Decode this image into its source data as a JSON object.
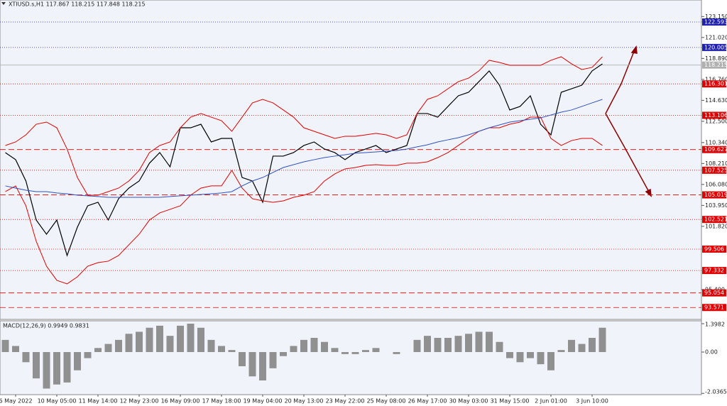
{
  "chart_data": {
    "type": "line",
    "title": "XTIUSD.s,H1  117.867 118.215 117.848 118.215",
    "categories": [
      null,
      "6 May 2022",
      null,
      null,
      null,
      "10 May 05:00",
      null,
      null,
      null,
      "11 May 14:00",
      null,
      null,
      null,
      "12 May 23:00",
      null,
      null,
      null,
      "16 May 09:00",
      null,
      null,
      null,
      "17 May 18:00",
      null,
      null,
      null,
      "19 May 04:00",
      null,
      null,
      null,
      "20 May 13:00",
      null,
      null,
      null,
      "23 May 22:00",
      null,
      null,
      null,
      "25 May 08:00",
      null,
      null,
      null,
      "26 May 17:00",
      null,
      null,
      null,
      "30 May 03:00",
      null,
      null,
      null,
      "31 May 15:00",
      null,
      null,
      null,
      "2 Jun 01:00",
      null,
      null,
      null,
      "3 Jun 10:00",
      null
    ],
    "series": [
      {
        "color": "#000000",
        "values": [
          109.32,
          108.6,
          106.43,
          102.46,
          101.02,
          102.46,
          98.86,
          101.74,
          103.91,
          104.27,
          102.46,
          104.63,
          105.71,
          106.43,
          108.24,
          109.32,
          107.87,
          111.84,
          111.84,
          112.2,
          110.4,
          110.76,
          110.76,
          106.79,
          106.43,
          104.27,
          108.96,
          108.96,
          109.32,
          110.04,
          110.4,
          109.68,
          109.32,
          108.6,
          109.32,
          109.68,
          110.04,
          109.32,
          109.68,
          110.04,
          113.29,
          113.29,
          112.92,
          114.01,
          115.09,
          115.45,
          116.53,
          117.62,
          116.17,
          113.65,
          114.01,
          115.09,
          112.2,
          111.12,
          115.45,
          115.81,
          116.17,
          117.62,
          118.34
        ]
      },
      {
        "color": "#e00000",
        "values": [
          110.04,
          110.4,
          111.12,
          112.2,
          112.42,
          111.84,
          109.68,
          106.79,
          104.99,
          104.99,
          105.35,
          105.71,
          106.43,
          107.51,
          109.32,
          110.04,
          110.4,
          111.84,
          112.92,
          113.29,
          112.92,
          112.56,
          111.48,
          112.92,
          114.37,
          114.73,
          114.37,
          113.65,
          112.92,
          111.84,
          111.48,
          111.12,
          110.76,
          110.98,
          110.98,
          111.12,
          111.27,
          111.12,
          110.76,
          111.12,
          113.29,
          114.73,
          115.09,
          115.81,
          116.53,
          116.89,
          117.62,
          118.7,
          118.48,
          118.19,
          118.19,
          118.19,
          118.19,
          118.7,
          119.06,
          118.34,
          117.76,
          117.98,
          119.06
        ]
      },
      {
        "color": "#e00000",
        "values": [
          105.35,
          105.93,
          103.91,
          100.3,
          97.77,
          96.33,
          95.97,
          96.69,
          97.77,
          98.13,
          98.28,
          98.86,
          99.94,
          101.02,
          102.46,
          103.19,
          103.55,
          103.91,
          104.99,
          105.71,
          105.93,
          105.93,
          107.51,
          105.71,
          104.63,
          104.41,
          104.27,
          104.41,
          104.77,
          104.99,
          105.35,
          106.43,
          107.15,
          107.66,
          107.8,
          108.02,
          108.09,
          108.02,
          108.02,
          108.24,
          108.24,
          108.38,
          108.81,
          109.32,
          110.04,
          110.76,
          111.48,
          111.84,
          111.84,
          112.2,
          112.42,
          112.92,
          112.92,
          110.76,
          110.04,
          110.54,
          110.76,
          110.76,
          110.04
        ]
      },
      {
        "color": "#3050c0",
        "values": [
          105.93,
          105.71,
          105.49,
          105.35,
          105.35,
          105.21,
          105.13,
          104.99,
          104.92,
          104.85,
          104.77,
          104.77,
          104.77,
          104.77,
          104.77,
          104.77,
          104.85,
          104.92,
          104.99,
          105.06,
          105.13,
          105.21,
          105.35,
          105.93,
          106.43,
          106.79,
          107.3,
          107.8,
          108.09,
          108.38,
          108.6,
          108.81,
          108.96,
          109.1,
          109.25,
          109.32,
          109.39,
          109.46,
          109.53,
          109.68,
          109.9,
          110.11,
          110.4,
          110.62,
          110.83,
          111.12,
          111.48,
          111.84,
          112.13,
          112.42,
          112.56,
          112.71,
          112.85,
          113.14,
          113.43,
          113.65,
          114.01,
          114.37,
          114.73
        ]
      }
    ],
    "ylim": [
      92.36,
      124.83
    ],
    "yticks": [
      {
        "value": 123.15,
        "label": "123.150"
      },
      {
        "value": 121.02,
        "label": "121.020"
      },
      {
        "value": 118.89,
        "label": "118.890"
      },
      {
        "value": 116.76,
        "label": "116.760"
      },
      {
        "value": 114.63,
        "label": "114.630"
      },
      {
        "value": 112.5,
        "label": "112.500"
      },
      {
        "value": 110.34,
        "label": "110.340"
      },
      {
        "value": 108.21,
        "label": "108.210"
      },
      {
        "value": 106.08,
        "label": "106.080"
      },
      {
        "value": 103.95,
        "label": "103.950"
      },
      {
        "value": 101.82,
        "label": "101.820"
      },
      {
        "value": 95.4,
        "label": "95.400"
      }
    ],
    "levels": [
      {
        "value": 122.593,
        "color": "#2020b0",
        "style": "dotted"
      },
      {
        "value": 120.005,
        "color": "#2020b0",
        "style": "dotted"
      },
      {
        "value": 118.215,
        "color": "#b0b0b0",
        "style": "solid"
      },
      {
        "value": 116.301,
        "color": "#e00000",
        "style": "dotted"
      },
      {
        "value": 113.106,
        "color": "#e00000",
        "style": "dotted"
      },
      {
        "value": 109.627,
        "color": "#e00000",
        "style": "dashed"
      },
      {
        "value": 107.525,
        "color": "#e00000",
        "style": "dotted"
      },
      {
        "value": 105.019,
        "color": "#e00000",
        "style": "dashed"
      },
      {
        "value": 102.521,
        "color": "#e00000",
        "style": "dotted"
      },
      {
        "value": 99.506,
        "color": "#e00000",
        "style": "dotted"
      },
      {
        "value": 97.332,
        "color": "#e00000",
        "style": "dotted"
      },
      {
        "value": 95.054,
        "color": "#e00000",
        "style": "dashed"
      },
      {
        "value": 93.571,
        "color": "#e00000",
        "style": "dashed"
      }
    ],
    "macd": {
      "label": "MACD(12,26,9) 0.9949 0.9831",
      "color": "#909090",
      "values": [
        0.6,
        0.3,
        -0.5,
        -1.3,
        -1.8,
        -1.6,
        -1.5,
        -0.9,
        -0.3,
        0.2,
        0.4,
        0.6,
        0.9,
        1.0,
        1.2,
        1.3,
        0.8,
        1.3,
        1.4,
        1.2,
        0.6,
        0.3,
        0.1,
        -0.7,
        -1.2,
        -1.4,
        -0.8,
        -0.2,
        0.3,
        0.6,
        0.7,
        0.5,
        0.2,
        -0.1,
        -0.1,
        0.1,
        0.2,
        0,
        -0.1,
        0,
        0.6,
        0.8,
        0.7,
        0.7,
        0.8,
        0.9,
        1.0,
        1.0,
        0.5,
        -0.3,
        -0.5,
        -0.3,
        -0.6,
        -0.9,
        0.1,
        0.6,
        0.4,
        0.7,
        1.2
      ],
      "ylim": [
        -2.1,
        1.54
      ],
      "yticks": [
        1.3982,
        {
          "value": 0,
          "label": "0.00"
        },
        -2.0365
      ]
    }
  }
}
